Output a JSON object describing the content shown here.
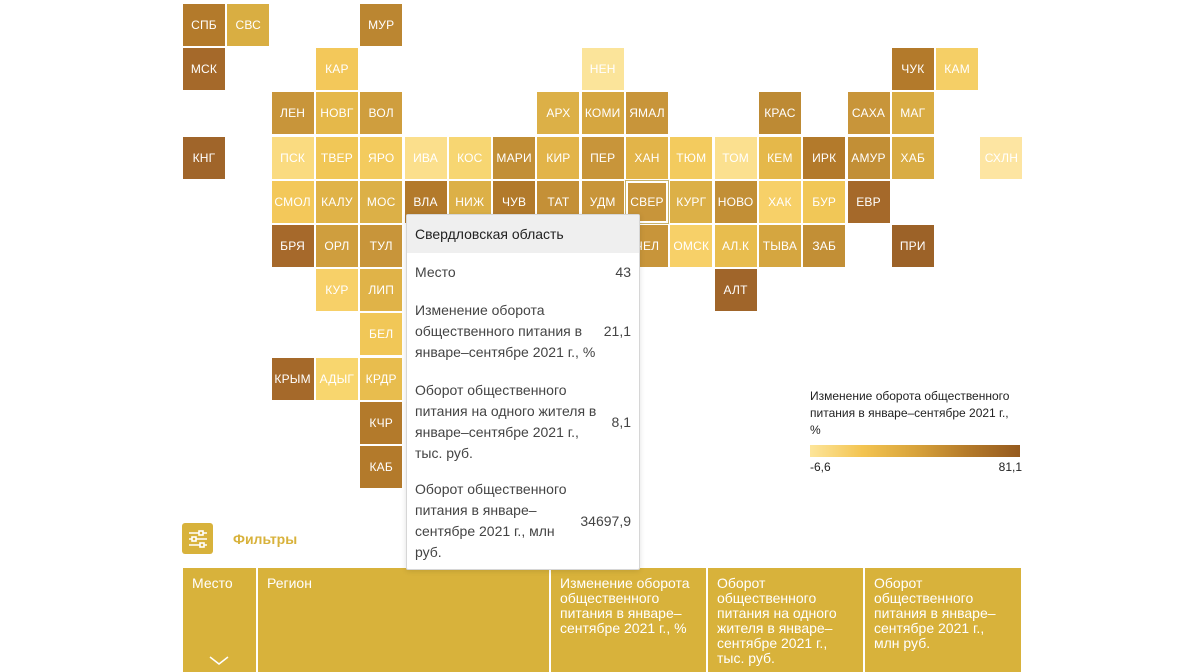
{
  "map": {
    "tiles": [
      {
        "label": "СПБ",
        "color": "#b37a2b"
      },
      {
        "label": "СВС",
        "color": "#d9ae42"
      },
      {
        "label": "МУР",
        "color": "#bb8631"
      },
      {
        "label": "МСК",
        "color": "#a5692a"
      },
      {
        "label": "КАР",
        "color": "#f3c85a"
      },
      {
        "label": "НЕН",
        "color": "#fbe49a"
      },
      {
        "label": "ЧУК",
        "color": "#b37a2b"
      },
      {
        "label": "КАМ",
        "color": "#f5cf66"
      },
      {
        "label": "ЛЕН",
        "color": "#c8953a"
      },
      {
        "label": "НОВГ",
        "color": "#e5b84a"
      },
      {
        "label": "ВОЛ",
        "color": "#cf9e3e"
      },
      {
        "label": "АРХ",
        "color": "#dcb047"
      },
      {
        "label": "КОМИ",
        "color": "#d5a640"
      },
      {
        "label": "ЯМАЛ",
        "color": "#c8953a"
      },
      {
        "label": "КРАС",
        "color": "#bd8a34"
      },
      {
        "label": "САХА",
        "color": "#c8953a"
      },
      {
        "label": "МАГ",
        "color": "#d9ac44"
      },
      {
        "label": "КНГ",
        "color": "#a0652a"
      },
      {
        "label": "ПСК",
        "color": "#fadb80"
      },
      {
        "label": "ТВЕР",
        "color": "#f1c757"
      },
      {
        "label": "ЯРО",
        "color": "#f3cb5e"
      },
      {
        "label": "ИВА",
        "color": "#fbdf8c"
      },
      {
        "label": "КОС",
        "color": "#f7d672"
      },
      {
        "label": "МАРИ",
        "color": "#c28f36"
      },
      {
        "label": "КИР",
        "color": "#e2b449"
      },
      {
        "label": "ПЕР",
        "color": "#c8953a"
      },
      {
        "label": "ХАН",
        "color": "#e2b449"
      },
      {
        "label": "ТЮМ",
        "color": "#f3cb5e"
      },
      {
        "label": "ТОМ",
        "color": "#fbe08f"
      },
      {
        "label": "КЕМ",
        "color": "#e5b84a"
      },
      {
        "label": "ИРК",
        "color": "#b37a2b"
      },
      {
        "label": "АМУР",
        "color": "#c28f36"
      },
      {
        "label": "ХАБ",
        "color": "#d9ac44"
      },
      {
        "label": "СХЛН",
        "color": "#fde5a2"
      },
      {
        "label": "СМОЛ",
        "color": "#f3c85a"
      },
      {
        "label": "КАЛУ",
        "color": "#e0b348"
      },
      {
        "label": "МОС",
        "color": "#dcb047"
      },
      {
        "label": "ВЛА",
        "color": "#b37a2b"
      },
      {
        "label": "НИЖ",
        "color": "#dcb047"
      },
      {
        "label": "ЧУВ",
        "color": "#b27a2b"
      },
      {
        "label": "ТАТ",
        "color": "#c49037"
      },
      {
        "label": "УДМ",
        "color": "#c8953a"
      },
      {
        "label": "СВЕР",
        "color": "#c8953a"
      },
      {
        "label": "КУРГ",
        "color": "#dcb047"
      },
      {
        "label": "НОВО",
        "color": "#c28f36"
      },
      {
        "label": "ХАК",
        "color": "#f7d068"
      },
      {
        "label": "БУР",
        "color": "#f1c757"
      },
      {
        "label": "ЕВР",
        "color": "#a5692a"
      },
      {
        "label": "БРЯ",
        "color": "#a6692b"
      },
      {
        "label": "ОРЛ",
        "color": "#cf9e3e"
      },
      {
        "label": "ТУЛ",
        "color": "#c8953a"
      },
      {
        "label": "ЧЕЛ",
        "color": "#c8953a"
      },
      {
        "label": "ОМСК",
        "color": "#f7d068"
      },
      {
        "label": "АЛ.К",
        "color": "#e8bd4e"
      },
      {
        "label": "ТЫВА",
        "color": "#d5a640"
      },
      {
        "label": "ЗАБ",
        "color": "#c28f36"
      },
      {
        "label": "ПРИ",
        "color": "#9c6228"
      },
      {
        "label": "КУР",
        "color": "#f7d068"
      },
      {
        "label": "ЛИП",
        "color": "#e0b348"
      },
      {
        "label": "АЛТ",
        "color": "#a0652a"
      },
      {
        "label": "БЕЛ",
        "color": "#f1c757"
      },
      {
        "label": "КРЫМ",
        "color": "#a5692a"
      },
      {
        "label": "АДЫГ",
        "color": "#f8d66e"
      },
      {
        "label": "КРДР",
        "color": "#e8bd4e"
      },
      {
        "label": "КЧР",
        "color": "#b37a2b"
      },
      {
        "label": "КАБ",
        "color": "#b37a2b"
      }
    ],
    "selected": "СВЕР"
  },
  "tooltip": {
    "title": "Свердловская область",
    "rows": [
      {
        "label": "Место",
        "value": "43"
      },
      {
        "label": "Изменение оборота общественного питания в январе–сентябре 2021 г., %",
        "value": "21,1"
      },
      {
        "label": "Оборот общественного питания на одного жителя в январе–сентябре 2021 г., тыс. руб.",
        "value": "8,1"
      },
      {
        "label": "Оборот общественного питания в январе–сентябре 2021 г., млн руб.",
        "value": "34697,9"
      }
    ]
  },
  "legend": {
    "title": "Изменение оборота общественного питания в январе–сентябре 2021 г., %",
    "min": "-6,6",
    "max": "81,1"
  },
  "filters": {
    "label": "Фильтры",
    "icon": "sliders-icon"
  },
  "table": {
    "headers": [
      "Место",
      "Регион",
      "Изменение оборота общественного питания в январе–сентябре 2021 г., %",
      "Оборот общественного питания на одного жителя в январе–сентябре 2021 г., тыс. руб.",
      "Оборот общественного питания в январе–сентябре 2021 г., млн руб."
    ],
    "sort_icon": "chevron-down-icon",
    "header_color": "#d8b23b"
  }
}
